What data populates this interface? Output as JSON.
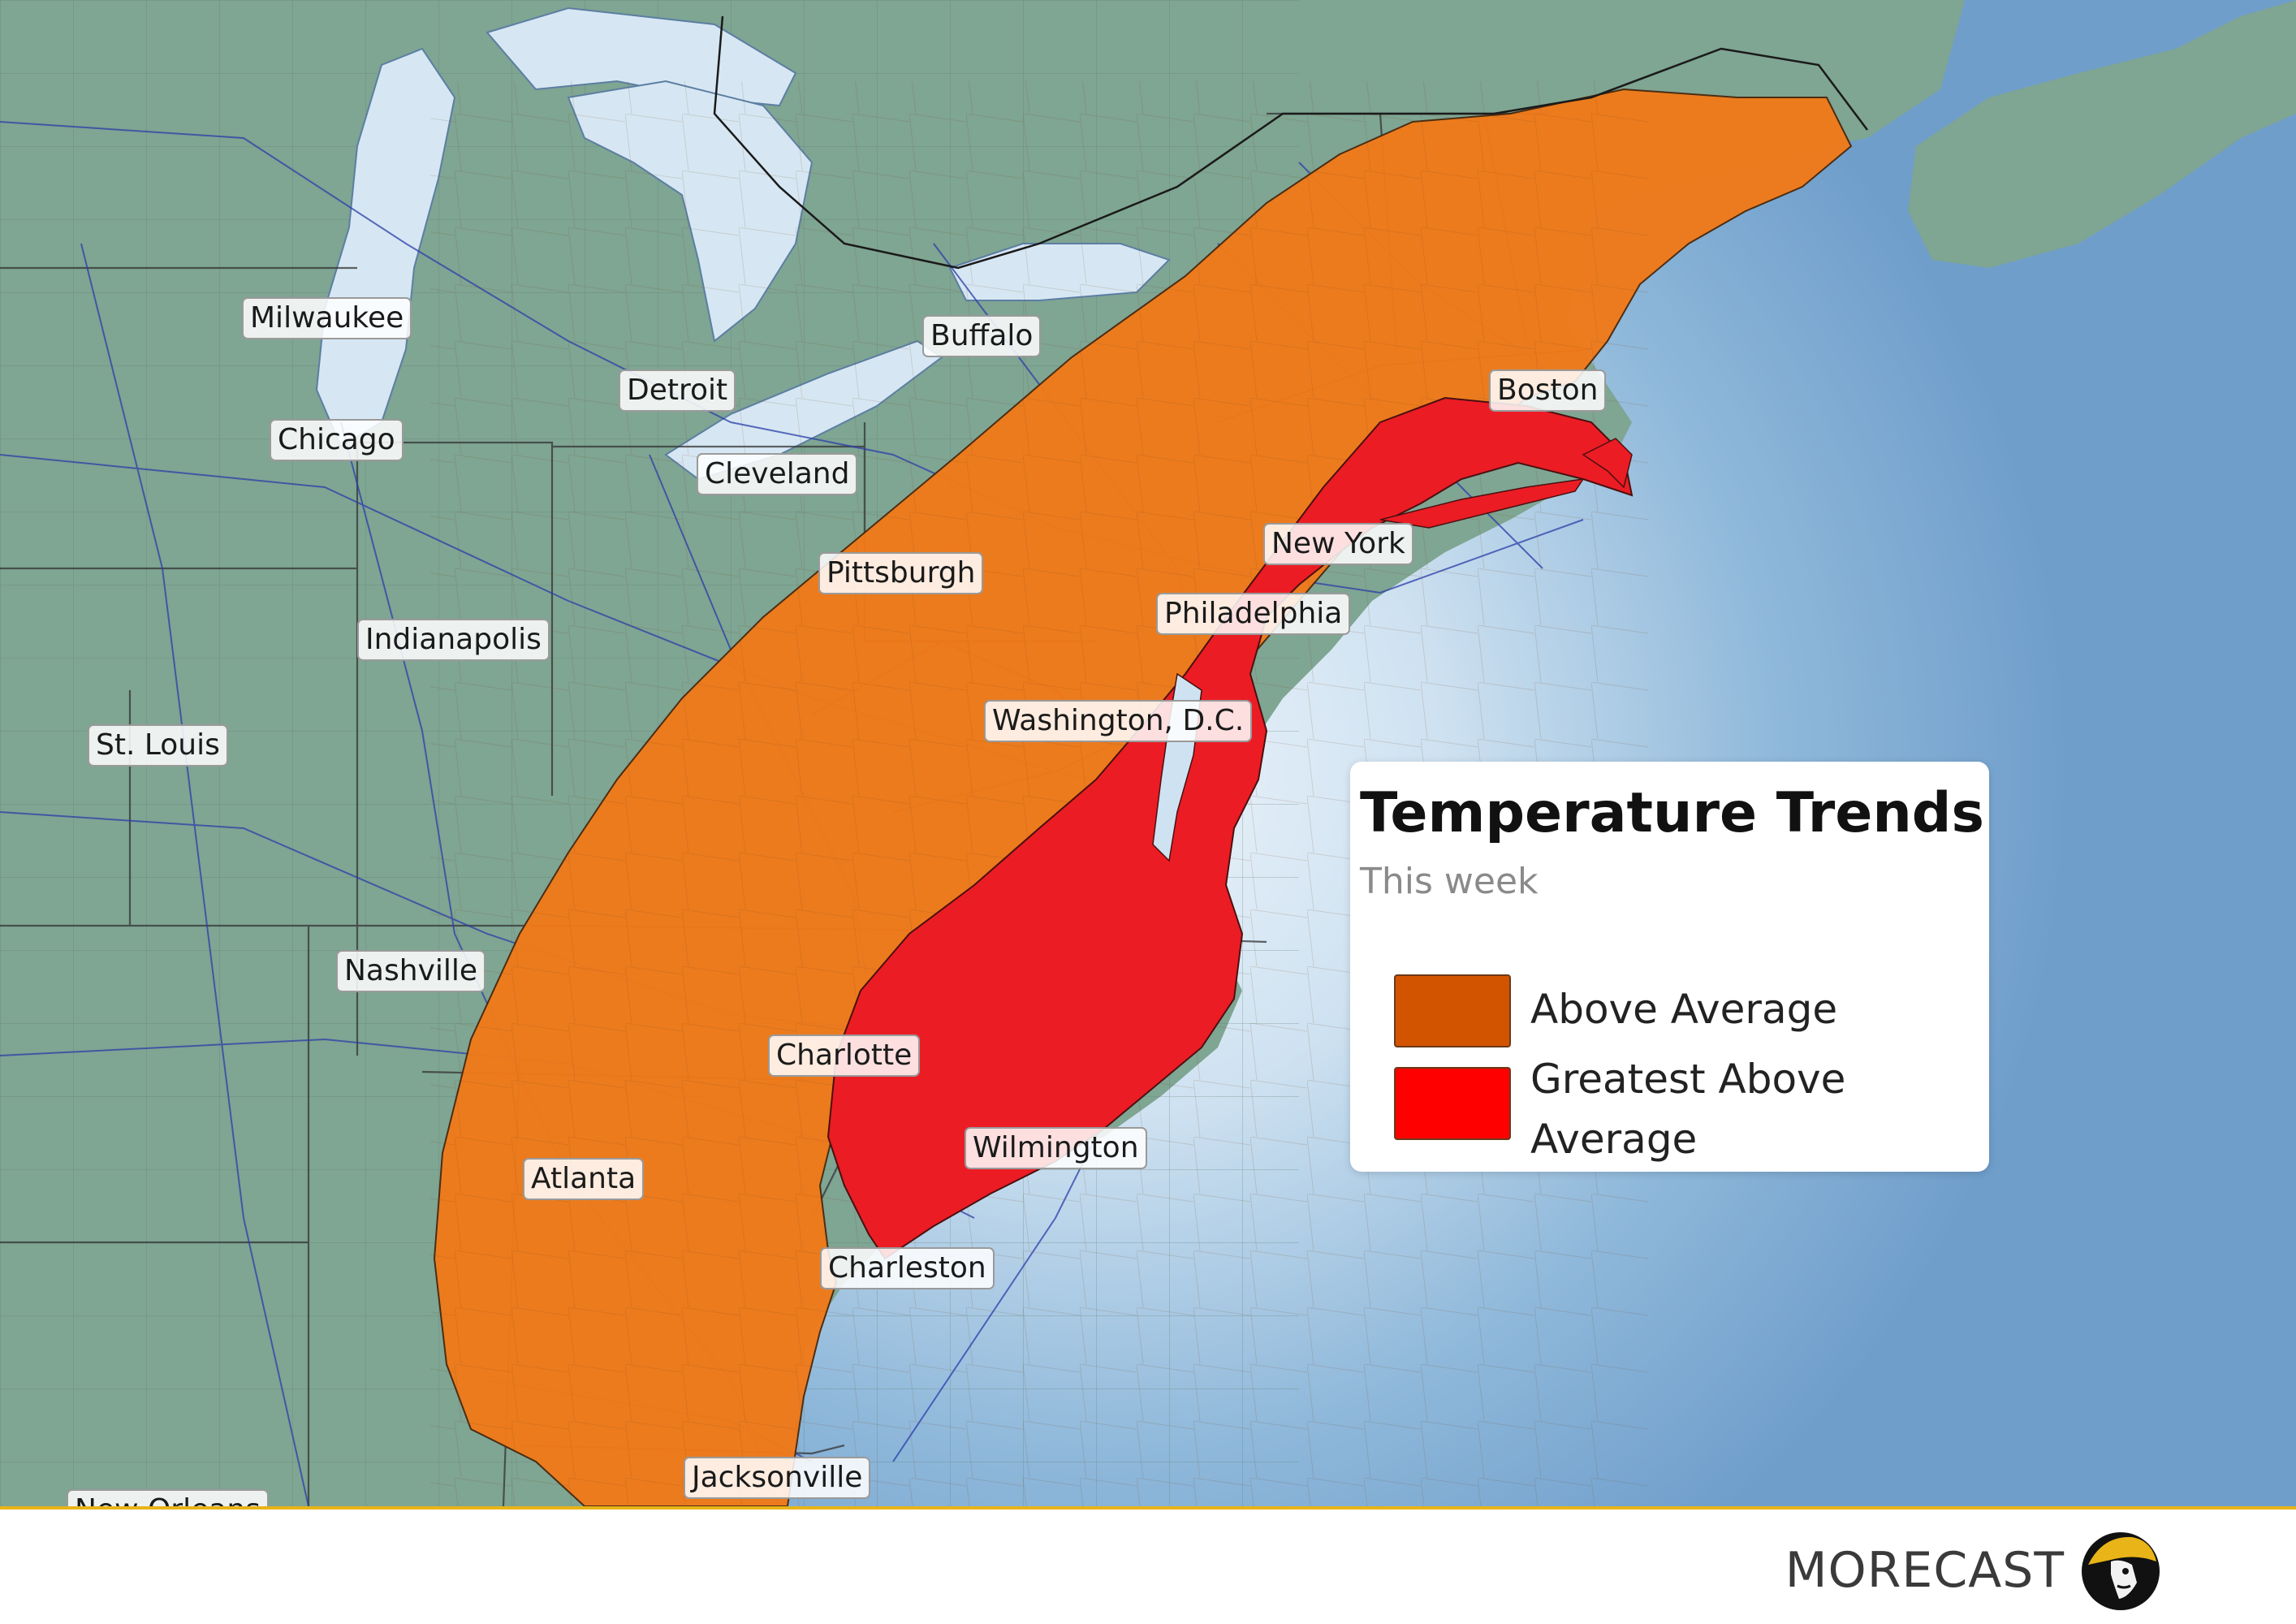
{
  "legend": {
    "title": "Temperature Trends",
    "subtitle": "This week",
    "items": [
      {
        "label": "Above Average",
        "color": "#d35400"
      },
      {
        "label": "Greatest Above\nAverage",
        "color": "#ff0000"
      }
    ]
  },
  "cities": [
    {
      "name": "Milwaukee"
    },
    {
      "name": "Detroit"
    },
    {
      "name": "Buffalo"
    },
    {
      "name": "Boston"
    },
    {
      "name": "Chicago"
    },
    {
      "name": "Cleveland"
    },
    {
      "name": "New York"
    },
    {
      "name": "Pittsburgh"
    },
    {
      "name": "Philadelphia"
    },
    {
      "name": "Indianapolis"
    },
    {
      "name": "Washington, D.C."
    },
    {
      "name": "St. Louis"
    },
    {
      "name": "Nashville"
    },
    {
      "name": "Charlotte"
    },
    {
      "name": "Wilmington"
    },
    {
      "name": "Atlanta"
    },
    {
      "name": "Charleston"
    },
    {
      "name": "Jacksonville"
    },
    {
      "name": "New Orleans"
    }
  ],
  "regions": {
    "above_average_color": "#f07a1a",
    "greatest_color": "#ec1c24",
    "land_color": "#7aa08e",
    "water_color": "#7aaad0",
    "lake_color": "#d6e7f3"
  },
  "branding": {
    "name": "MORECAST",
    "accent": "#e8b417"
  }
}
